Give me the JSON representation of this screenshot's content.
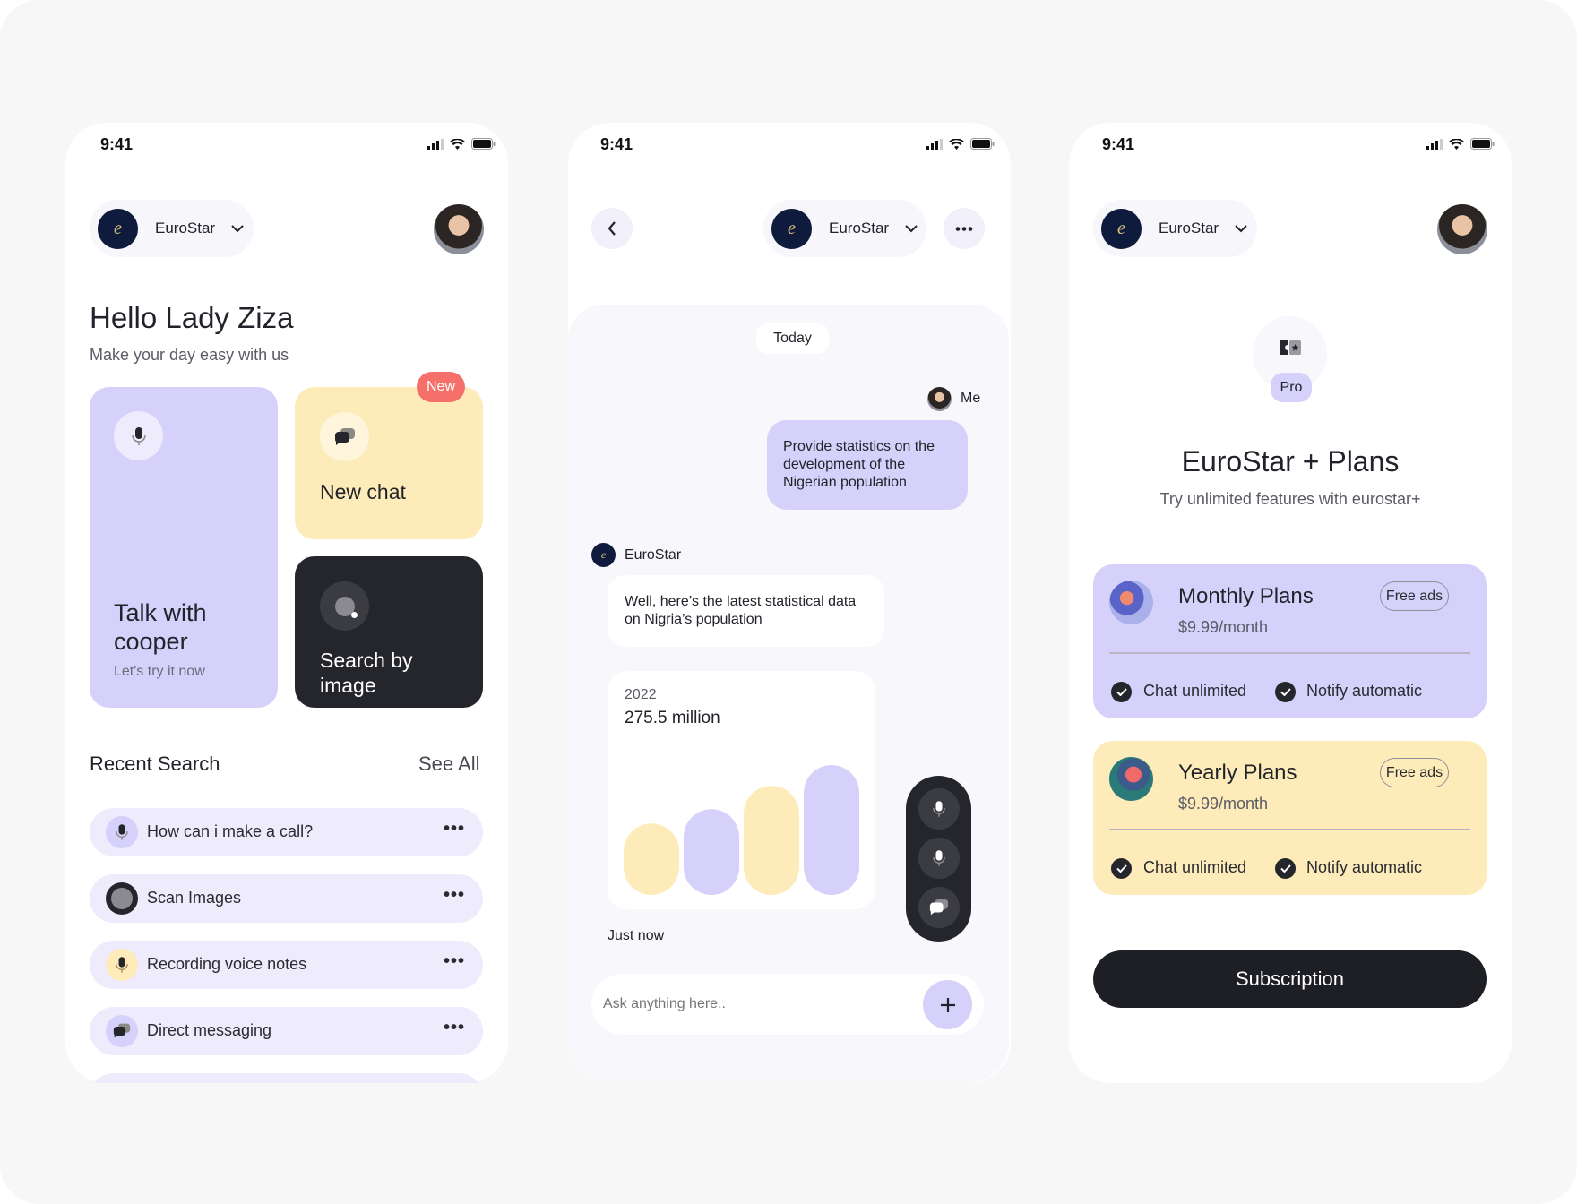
{
  "status_bar": {
    "time": "9:41"
  },
  "brand": {
    "name": "EuroStar",
    "logo_letter": "e"
  },
  "colors": {
    "lavender": "#d6d1fa",
    "yellow": "#fdebb9",
    "dark": "#25262b",
    "badge": "#f6706b",
    "row": "#eeebfc"
  },
  "home": {
    "greeting": "Hello Lady Ziza",
    "subtitle": "Make your day easy with us",
    "talk_card": {
      "title": "Talk with cooper",
      "subtitle": "Let's try it now",
      "icon": "mic-icon"
    },
    "new_chat_card": {
      "title": "New chat",
      "badge": "New",
      "icon": "chat-bubbles-icon"
    },
    "search_card": {
      "title": "Search by image",
      "icon": "image-scan-icon"
    },
    "recent": {
      "title": "Recent Search",
      "see_all": "See All",
      "items": [
        {
          "label": "How can i make a call?",
          "icon": "mic-icon"
        },
        {
          "label": "Scan Images",
          "icon": "image-scan-icon"
        },
        {
          "label": "Recording voice notes",
          "icon": "mic-icon"
        },
        {
          "label": "Direct messaging",
          "icon": "chat-bubbles-icon"
        }
      ],
      "more": "•••"
    }
  },
  "chat": {
    "date": "Today",
    "me_label": "Me",
    "user_message": "Provide statistics on the development of the Nigerian population",
    "bot_name": "EuroStar",
    "bot_message": "Well, here’s the latest statistical data on Nigria’s population",
    "stat_year": "2022",
    "stat_value": "275.5 million",
    "timestamp": "Just now",
    "input_placeholder": "Ask anything here..",
    "tools": [
      "mic-icon",
      "mic-icon",
      "chat-bubbles-icon"
    ]
  },
  "chart_data": {
    "type": "bar",
    "values": [
      55,
      66,
      84,
      100
    ],
    "colors": [
      "#fdebb9",
      "#d6d1fa",
      "#fdebb9",
      "#d6d1fa"
    ],
    "ylim": [
      0,
      100
    ],
    "grid": false
  },
  "plans": {
    "badge": "Pro",
    "title": "EuroStar + Plans",
    "subtitle": "Try unlimited features with eurostar+",
    "items": [
      {
        "name": "Monthly Plans",
        "price": "$9.99/month",
        "tag": "Free ads",
        "features": [
          "Chat unlimited",
          "Notify automatic"
        ],
        "color": "#d6d1fa"
      },
      {
        "name": "Yearly Plans",
        "price": "$9.99/month",
        "tag": "Free ads",
        "features": [
          "Chat unlimited",
          "Notify automatic"
        ],
        "color": "#fdebb9"
      }
    ],
    "cta": "Subscription"
  }
}
